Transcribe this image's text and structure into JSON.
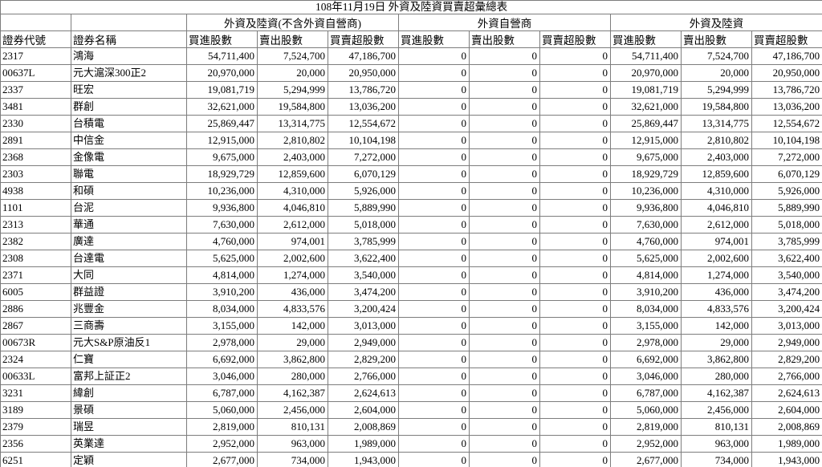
{
  "title": "108年11月19日 外資及陸資買賣超彙總表",
  "table": {
    "code_header": "證券代號",
    "name_header": "證券名稱",
    "groups": [
      {
        "label": "外資及陸資(不含外資自營商)"
      },
      {
        "label": "外資自營商"
      },
      {
        "label": "外資及陸資"
      }
    ],
    "sub_headers": [
      "買進股數",
      "賣出股數",
      "買賣超股數"
    ],
    "rows": [
      {
        "code": "2317",
        "name": "鴻海",
        "g1": [
          "54,711,400",
          "7,524,700",
          "47,186,700"
        ],
        "g2": [
          "0",
          "0",
          "0"
        ],
        "g3": [
          "54,711,400",
          "7,524,700",
          "47,186,700"
        ]
      },
      {
        "code": "00637L",
        "name": "元大滬深300正2",
        "g1": [
          "20,970,000",
          "20,000",
          "20,950,000"
        ],
        "g2": [
          "0",
          "0",
          "0"
        ],
        "g3": [
          "20,970,000",
          "20,000",
          "20,950,000"
        ]
      },
      {
        "code": "2337",
        "name": "旺宏",
        "g1": [
          "19,081,719",
          "5,294,999",
          "13,786,720"
        ],
        "g2": [
          "0",
          "0",
          "0"
        ],
        "g3": [
          "19,081,719",
          "5,294,999",
          "13,786,720"
        ]
      },
      {
        "code": "3481",
        "name": "群創",
        "g1": [
          "32,621,000",
          "19,584,800",
          "13,036,200"
        ],
        "g2": [
          "0",
          "0",
          "0"
        ],
        "g3": [
          "32,621,000",
          "19,584,800",
          "13,036,200"
        ]
      },
      {
        "code": "2330",
        "name": "台積電",
        "g1": [
          "25,869,447",
          "13,314,775",
          "12,554,672"
        ],
        "g2": [
          "0",
          "0",
          "0"
        ],
        "g3": [
          "25,869,447",
          "13,314,775",
          "12,554,672"
        ]
      },
      {
        "code": "2891",
        "name": "中信金",
        "g1": [
          "12,915,000",
          "2,810,802",
          "10,104,198"
        ],
        "g2": [
          "0",
          "0",
          "0"
        ],
        "g3": [
          "12,915,000",
          "2,810,802",
          "10,104,198"
        ]
      },
      {
        "code": "2368",
        "name": "金像電",
        "g1": [
          "9,675,000",
          "2,403,000",
          "7,272,000"
        ],
        "g2": [
          "0",
          "0",
          "0"
        ],
        "g3": [
          "9,675,000",
          "2,403,000",
          "7,272,000"
        ]
      },
      {
        "code": "2303",
        "name": "聯電",
        "g1": [
          "18,929,729",
          "12,859,600",
          "6,070,129"
        ],
        "g2": [
          "0",
          "0",
          "0"
        ],
        "g3": [
          "18,929,729",
          "12,859,600",
          "6,070,129"
        ]
      },
      {
        "code": "4938",
        "name": "和碩",
        "g1": [
          "10,236,000",
          "4,310,000",
          "5,926,000"
        ],
        "g2": [
          "0",
          "0",
          "0"
        ],
        "g3": [
          "10,236,000",
          "4,310,000",
          "5,926,000"
        ]
      },
      {
        "code": "1101",
        "name": "台泥",
        "g1": [
          "9,936,800",
          "4,046,810",
          "5,889,990"
        ],
        "g2": [
          "0",
          "0",
          "0"
        ],
        "g3": [
          "9,936,800",
          "4,046,810",
          "5,889,990"
        ]
      },
      {
        "code": "2313",
        "name": "華通",
        "g1": [
          "7,630,000",
          "2,612,000",
          "5,018,000"
        ],
        "g2": [
          "0",
          "0",
          "0"
        ],
        "g3": [
          "7,630,000",
          "2,612,000",
          "5,018,000"
        ]
      },
      {
        "code": "2382",
        "name": "廣達",
        "g1": [
          "4,760,000",
          "974,001",
          "3,785,999"
        ],
        "g2": [
          "0",
          "0",
          "0"
        ],
        "g3": [
          "4,760,000",
          "974,001",
          "3,785,999"
        ]
      },
      {
        "code": "2308",
        "name": "台達電",
        "g1": [
          "5,625,000",
          "2,002,600",
          "3,622,400"
        ],
        "g2": [
          "0",
          "0",
          "0"
        ],
        "g3": [
          "5,625,000",
          "2,002,600",
          "3,622,400"
        ]
      },
      {
        "code": "2371",
        "name": "大同",
        "g1": [
          "4,814,000",
          "1,274,000",
          "3,540,000"
        ],
        "g2": [
          "0",
          "0",
          "0"
        ],
        "g3": [
          "4,814,000",
          "1,274,000",
          "3,540,000"
        ]
      },
      {
        "code": "6005",
        "name": "群益證",
        "g1": [
          "3,910,200",
          "436,000",
          "3,474,200"
        ],
        "g2": [
          "0",
          "0",
          "0"
        ],
        "g3": [
          "3,910,200",
          "436,000",
          "3,474,200"
        ]
      },
      {
        "code": "2886",
        "name": "兆豐金",
        "g1": [
          "8,034,000",
          "4,833,576",
          "3,200,424"
        ],
        "g2": [
          "0",
          "0",
          "0"
        ],
        "g3": [
          "8,034,000",
          "4,833,576",
          "3,200,424"
        ]
      },
      {
        "code": "2867",
        "name": "三商壽",
        "g1": [
          "3,155,000",
          "142,000",
          "3,013,000"
        ],
        "g2": [
          "0",
          "0",
          "0"
        ],
        "g3": [
          "3,155,000",
          "142,000",
          "3,013,000"
        ]
      },
      {
        "code": "00673R",
        "name": "元大S&P原油反1",
        "g1": [
          "2,978,000",
          "29,000",
          "2,949,000"
        ],
        "g2": [
          "0",
          "0",
          "0"
        ],
        "g3": [
          "2,978,000",
          "29,000",
          "2,949,000"
        ]
      },
      {
        "code": "2324",
        "name": "仁寶",
        "g1": [
          "6,692,000",
          "3,862,800",
          "2,829,200"
        ],
        "g2": [
          "0",
          "0",
          "0"
        ],
        "g3": [
          "6,692,000",
          "3,862,800",
          "2,829,200"
        ]
      },
      {
        "code": "00633L",
        "name": "富邦上証正2",
        "g1": [
          "3,046,000",
          "280,000",
          "2,766,000"
        ],
        "g2": [
          "0",
          "0",
          "0"
        ],
        "g3": [
          "3,046,000",
          "280,000",
          "2,766,000"
        ]
      },
      {
        "code": "3231",
        "name": "緯創",
        "g1": [
          "6,787,000",
          "4,162,387",
          "2,624,613"
        ],
        "g2": [
          "0",
          "0",
          "0"
        ],
        "g3": [
          "6,787,000",
          "4,162,387",
          "2,624,613"
        ]
      },
      {
        "code": "3189",
        "name": "景碩",
        "g1": [
          "5,060,000",
          "2,456,000",
          "2,604,000"
        ],
        "g2": [
          "0",
          "0",
          "0"
        ],
        "g3": [
          "5,060,000",
          "2,456,000",
          "2,604,000"
        ]
      },
      {
        "code": "2379",
        "name": "瑞昱",
        "g1": [
          "2,819,000",
          "810,131",
          "2,008,869"
        ],
        "g2": [
          "0",
          "0",
          "0"
        ],
        "g3": [
          "2,819,000",
          "810,131",
          "2,008,869"
        ]
      },
      {
        "code": "2356",
        "name": "英業達",
        "g1": [
          "2,952,000",
          "963,000",
          "1,989,000"
        ],
        "g2": [
          "0",
          "0",
          "0"
        ],
        "g3": [
          "2,952,000",
          "963,000",
          "1,989,000"
        ]
      },
      {
        "code": "6251",
        "name": "定穎",
        "g1": [
          "2,677,000",
          "734,000",
          "1,943,000"
        ],
        "g2": [
          "0",
          "0",
          "0"
        ],
        "g3": [
          "2,677,000",
          "734,000",
          "1,943,000"
        ]
      }
    ]
  }
}
